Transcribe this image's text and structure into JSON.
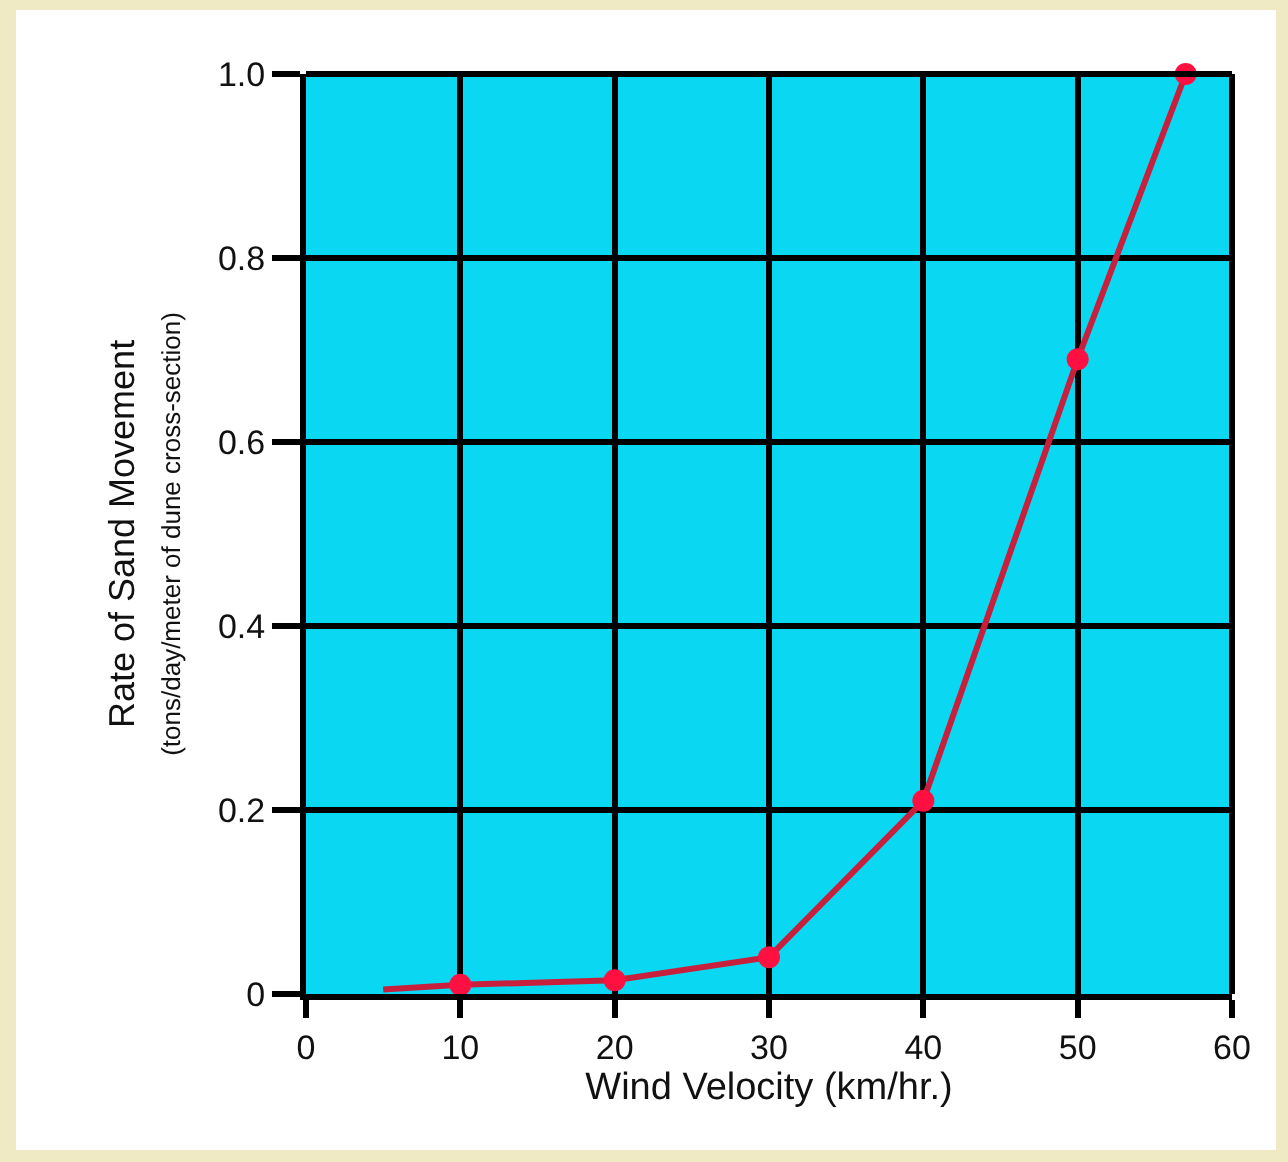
{
  "chart_data": {
    "type": "line",
    "xlabel": "Wind Velocity (km/hr.)",
    "ylabel": "Rate of Sand Movement\n(tons/day/meter of dune cross-section)",
    "xlim": [
      0,
      60
    ],
    "xticks": [
      0,
      10,
      20,
      30,
      40,
      50,
      60
    ],
    "ylim": [
      0,
      1
    ],
    "yticks": [
      0,
      0.2,
      0.4,
      0.6,
      0.8,
      {
        "value": 1,
        "label": "1.0"
      }
    ],
    "grid": true,
    "line_style": "solid",
    "series": [
      {
        "type": "line",
        "marker": "none",
        "color": "#c8203c",
        "x": [
          5,
          10,
          20,
          30,
          40,
          50,
          57
        ],
        "values": [
          0.005,
          0.01,
          0.015,
          0.04,
          0.21,
          0.69,
          1.0
        ]
      },
      {
        "type": "scatter",
        "marker": "circle",
        "color": "#ff1040",
        "x": [
          10,
          20,
          30,
          40,
          50,
          57
        ],
        "values": [
          0.01,
          0.015,
          0.04,
          0.21,
          0.69,
          1.0
        ]
      }
    ]
  }
}
